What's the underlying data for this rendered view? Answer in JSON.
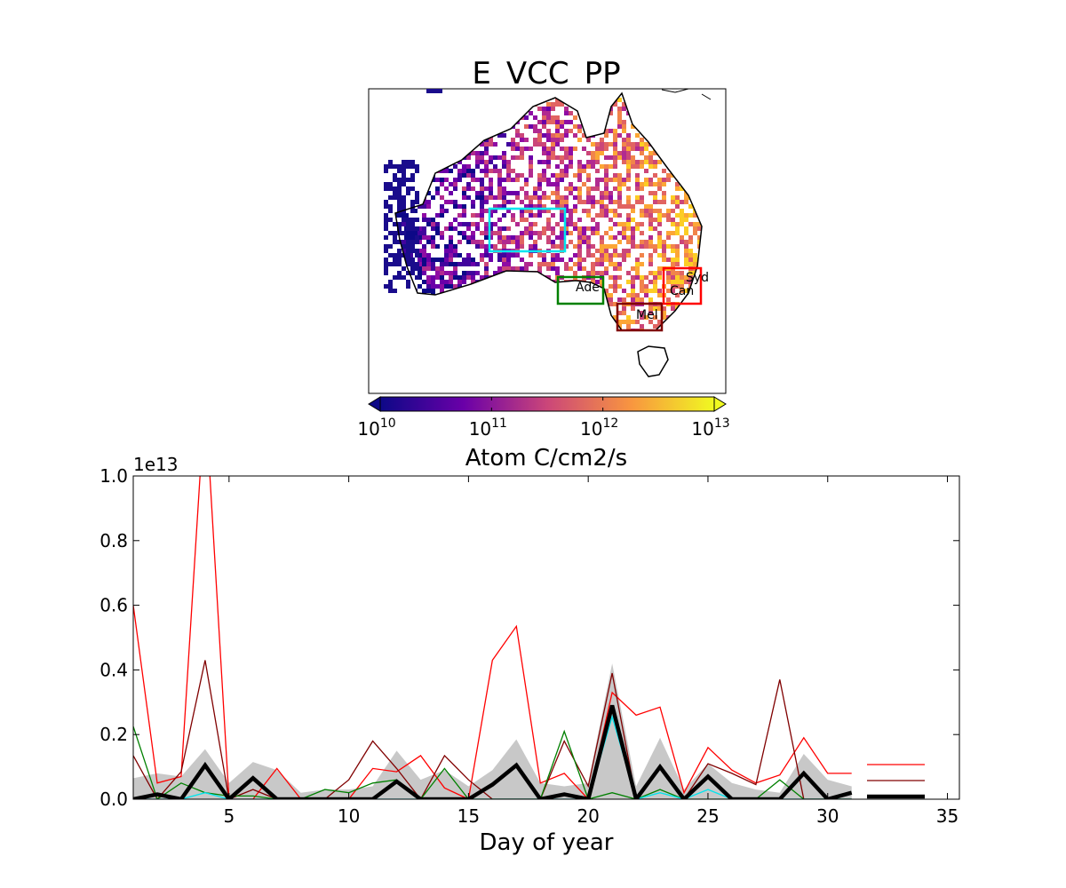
{
  "chart_data": [
    {
      "type": "heatmap",
      "title": "E_VCC_PP",
      "colorbar": {
        "label": "Atom C/cm2/s",
        "scale": "log",
        "colormap": "plasma",
        "extend": "both",
        "range": [
          10000000000.0,
          10000000000000.0
        ],
        "ticks": [
          {
            "base": "10",
            "exp": "10"
          },
          {
            "base": "10",
            "exp": "11"
          },
          {
            "base": "10",
            "exp": "12"
          },
          {
            "base": "10",
            "exp": "13"
          }
        ]
      },
      "regions": [
        {
          "label": "",
          "color": "#00e5ee"
        },
        {
          "label": "Ade",
          "color": "#008000"
        },
        {
          "label": "Mel",
          "color": "#800000"
        },
        {
          "label": "Syd",
          "color": "#ff0000"
        },
        {
          "label": "Can",
          "color": "#ff0000"
        }
      ]
    },
    {
      "type": "line",
      "xlabel": "Day of year",
      "ylabel": "",
      "xlim": [
        1,
        35.5
      ],
      "ylim": [
        0,
        1.0
      ],
      "y_offset_text": "1e13",
      "xticks": [
        "5",
        "10",
        "15",
        "20",
        "25",
        "30",
        "35"
      ],
      "yticks": [
        "0.0",
        "0.2",
        "0.4",
        "0.6",
        "0.8",
        "1.0"
      ],
      "x": [
        1,
        2,
        3,
        4,
        5,
        6,
        7,
        8,
        9,
        10,
        11,
        12,
        13,
        14,
        15,
        16,
        17,
        18,
        19,
        20,
        21,
        22,
        23,
        24,
        25,
        26,
        27,
        28,
        29,
        30,
        31
      ],
      "band": {
        "color": "#c8c8c8",
        "lower": [
          0,
          0,
          0,
          0,
          0,
          0,
          0,
          0,
          0,
          0,
          0,
          0,
          0,
          0,
          0,
          0,
          0,
          0,
          0,
          0,
          0,
          0,
          0,
          0,
          0,
          0,
          0,
          0,
          0,
          0,
          0
        ],
        "upper": [
          0.065,
          0.08,
          0.07,
          0.155,
          0.05,
          0.115,
          0.09,
          0.02,
          0.03,
          0.03,
          0.04,
          0.15,
          0.06,
          0.09,
          0.04,
          0.09,
          0.185,
          0.05,
          0.04,
          0.05,
          0.42,
          0.04,
          0.19,
          0.03,
          0.11,
          0.05,
          0.03,
          0.02,
          0.14,
          0.06,
          0.04
        ]
      },
      "series": [
        {
          "name": "",
          "color": "#ff0000",
          "width": 1.3,
          "values": [
            0.6,
            0.05,
            0.07,
            1.25,
            0.0,
            0.0,
            0.095,
            0.0,
            0.0,
            0.0,
            0.095,
            0.085,
            0.135,
            0.035,
            0.0,
            0.43,
            0.535,
            0.05,
            0.08,
            0.0,
            0.33,
            0.26,
            0.285,
            0.02,
            0.16,
            0.09,
            0.05,
            0.075,
            0.19,
            0.08,
            0.08
          ]
        },
        {
          "name": "",
          "color": "#800000",
          "width": 1.3,
          "values": [
            0.135,
            0.0,
            0.085,
            0.43,
            0.0,
            0.03,
            0.0,
            0.0,
            0.0,
            0.06,
            0.18,
            0.095,
            0.0,
            0.135,
            0.06,
            0.0,
            0.0,
            0.0,
            0.18,
            0.04,
            0.39,
            0.0,
            0.0,
            0.0,
            0.11,
            0.08,
            0.045,
            0.37,
            0.0,
            0.0,
            0.0
          ]
        },
        {
          "name": "",
          "color": "#008000",
          "width": 1.3,
          "values": [
            0.225,
            0.0,
            0.05,
            0.02,
            0.01,
            0.01,
            0.0,
            0.0,
            0.03,
            0.02,
            0.05,
            0.06,
            0.0,
            0.095,
            0.0,
            0.0,
            0.0,
            0.0,
            0.21,
            0.0,
            0.02,
            0.0,
            0.03,
            0.0,
            0.0,
            0.0,
            0.0,
            0.06,
            0.0,
            0.0,
            0.0
          ]
        },
        {
          "name": "",
          "color": "#00e5ee",
          "width": 1.3,
          "values": [
            0.0,
            0.0,
            0.0,
            0.02,
            0.0,
            0.0,
            0.0,
            0.0,
            0.0,
            0.0,
            0.0,
            0.0,
            0.0,
            0.0,
            0.0,
            0.0,
            0.0,
            0.0,
            0.0,
            0.0,
            0.255,
            0.0,
            0.02,
            0.0,
            0.03,
            0.0,
            0.0,
            0.0,
            0.0,
            0.0,
            0.0
          ]
        },
        {
          "name": "",
          "color": "#000000",
          "width": 4.5,
          "values": [
            0.0,
            0.015,
            0.0,
            0.105,
            0.0,
            0.065,
            0.0,
            0.0,
            0.0,
            0.0,
            0.0,
            0.055,
            0.0,
            0.0,
            0.0,
            0.045,
            0.105,
            0.0,
            0.015,
            0.0,
            0.29,
            0.0,
            0.1,
            0.0,
            0.07,
            0.0,
            0.0,
            0.0,
            0.08,
            0.0,
            0.02
          ]
        }
      ],
      "legend": {
        "placement": "lower-right",
        "entries": [
          {
            "name": "",
            "color": "#ff0000",
            "width": 1.3
          },
          {
            "name": "",
            "color": "#800000",
            "width": 1.3
          },
          {
            "name": "",
            "color": "#000000",
            "width": 4.5
          }
        ]
      }
    }
  ]
}
